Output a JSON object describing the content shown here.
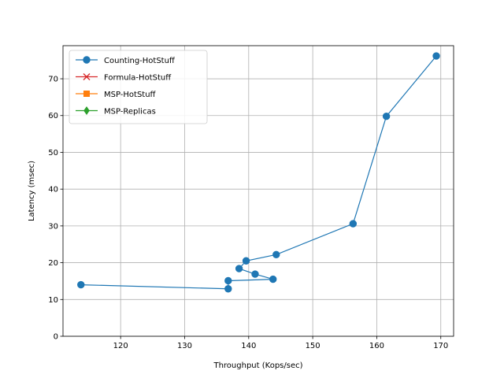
{
  "chart_data": {
    "type": "line",
    "title": "",
    "xlabel": "Throughput (Kops/sec)",
    "ylabel": "Latency (msec)",
    "xlim": [
      111.0,
      172.0
    ],
    "ylim": [
      0,
      79
    ],
    "xticks": [
      120,
      130,
      140,
      150,
      160,
      170
    ],
    "yticks": [
      0,
      10,
      20,
      30,
      40,
      50,
      60,
      70
    ],
    "grid": true,
    "legend_position": "top-left",
    "series": [
      {
        "name": "Counting-HotStuff",
        "color": "#1f77b4",
        "marker": "circle",
        "x": [
          113.8,
          136.8,
          136.8,
          143.8,
          141.0,
          138.5,
          139.6,
          144.3,
          156.3,
          161.5,
          169.3
        ],
        "y": [
          14.0,
          12.9,
          15.1,
          15.5,
          16.9,
          18.4,
          20.5,
          22.2,
          30.6,
          59.8,
          76.2
        ]
      },
      {
        "name": "Formula-HotStuff",
        "color": "#d62728",
        "marker": "x",
        "x": [],
        "y": []
      },
      {
        "name": "MSP-HotStuff",
        "color": "#ff7f0e",
        "marker": "square",
        "x": [],
        "y": []
      },
      {
        "name": "MSP-Replicas",
        "color": "#2ca02c",
        "marker": "diamond",
        "x": [],
        "y": []
      }
    ]
  }
}
